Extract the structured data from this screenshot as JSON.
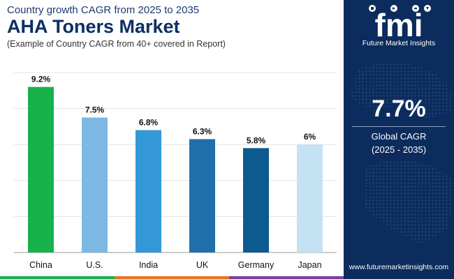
{
  "header": {
    "subtitle": "Country growth CAGR from 2025 to 2035",
    "title": "AHA Toners Market",
    "note": "(Example of Country CAGR from 40+ covered in Report)"
  },
  "chart_data": {
    "type": "bar",
    "categories": [
      "China",
      "U.S.",
      "India",
      "UK",
      "Germany",
      "Japan"
    ],
    "values": [
      9.2,
      7.5,
      6.8,
      6.3,
      5.8,
      6.0
    ],
    "data_labels": [
      "9.2%",
      "7.5%",
      "6.8%",
      "6.3%",
      "5.8%",
      "6%"
    ],
    "colors": [
      "#17b24a",
      "#7db8e4",
      "#3497d8",
      "#1f70aa",
      "#0d5a8f",
      "#c4e2f4"
    ],
    "ylim": [
      0,
      10
    ],
    "grid": true,
    "xlabel": "",
    "ylabel": "",
    "title": "AHA Toners Market"
  },
  "side_panel": {
    "logo_text": "fmi",
    "brand": "Future Market Insights",
    "cagr_value": "7.7%",
    "cagr_label": "Global CAGR",
    "cagr_range": "(2025 - 2035)",
    "website": "www.futuremarketinsights.com",
    "background_color": "#0b2c5c"
  },
  "bottom_bar_colors": [
    "#17b24a",
    "#e8741e",
    "#7b3fa0"
  ]
}
